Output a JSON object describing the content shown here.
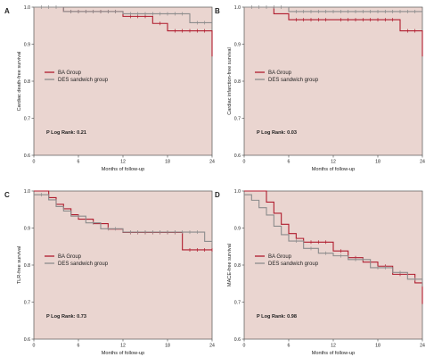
{
  "chart_data": [
    {
      "panel": "A",
      "type": "line",
      "ylabel": "Cardiac death-free survival",
      "xlabel": "Months of follow-up",
      "xlim": [
        0,
        24
      ],
      "ylim": [
        0.6,
        1.0
      ],
      "xticks": [
        0,
        6,
        12,
        18,
        24
      ],
      "yticks": [
        0.6,
        0.7,
        0.8,
        0.9,
        1.0
      ],
      "pvalue": "P Log Rank: 0.21",
      "legend_position": "center-left",
      "series": [
        {
          "name": "BA Group",
          "color": "#b01c2e",
          "x": [
            0,
            4,
            12,
            16,
            18,
            24,
            24
          ],
          "y": [
            1.0,
            0.988,
            0.975,
            0.956,
            0.936,
            0.936,
            0.867
          ],
          "censored_x": [
            5,
            6,
            7,
            8,
            9,
            10,
            11,
            13,
            14,
            15,
            17,
            19,
            20,
            21,
            22,
            23
          ]
        },
        {
          "name": "DES sandwich group",
          "color": "#8c8c8c",
          "x": [
            0,
            4,
            12,
            21,
            24
          ],
          "y": [
            1.0,
            0.988,
            0.982,
            0.958,
            0.958
          ],
          "censored_x": [
            1,
            2,
            3,
            5,
            6,
            7,
            8,
            9,
            10,
            11,
            13,
            14,
            15,
            16,
            17,
            18,
            19,
            20,
            22,
            23
          ]
        }
      ]
    },
    {
      "panel": "B",
      "type": "line",
      "ylabel": "Cardiac infarction-free survival",
      "xlabel": "Months of follow-up",
      "xlim": [
        0,
        24
      ],
      "ylim": [
        0.6,
        1.0
      ],
      "xticks": [
        0,
        6,
        12,
        18,
        24
      ],
      "yticks": [
        0.6,
        0.7,
        0.8,
        0.9,
        1.0
      ],
      "pvalue": "P Log Rank: 0.03",
      "legend_position": "center-left",
      "series": [
        {
          "name": "BA Group",
          "color": "#b01c2e",
          "x": [
            0,
            4,
            6,
            21,
            24,
            24
          ],
          "y": [
            1.0,
            0.982,
            0.966,
            0.936,
            0.936,
            0.867
          ],
          "censored_x": [
            7,
            8,
            9,
            10,
            11,
            13,
            14,
            15,
            16,
            17,
            18,
            19,
            20,
            22,
            23
          ]
        },
        {
          "name": "DES sandwich group",
          "color": "#8c8c8c",
          "x": [
            0,
            6,
            24
          ],
          "y": [
            1.0,
            0.988,
            0.988
          ],
          "censored_x": [
            1,
            2,
            3,
            4,
            5,
            7,
            8,
            9,
            10,
            11,
            12,
            13,
            14,
            15,
            16,
            17,
            18,
            19,
            20,
            21,
            22,
            23,
            24
          ]
        }
      ]
    },
    {
      "panel": "C",
      "type": "line",
      "ylabel": "TLR-free survival",
      "xlabel": "Months of follow-up",
      "xlim": [
        0,
        24
      ],
      "ylim": [
        0.6,
        1.0
      ],
      "xticks": [
        0,
        6,
        12,
        18,
        24
      ],
      "yticks": [
        0.6,
        0.7,
        0.8,
        0.9,
        1.0
      ],
      "pvalue": "P Log Rank: 0.73",
      "legend_position": "center-left",
      "series": [
        {
          "name": "BA Group",
          "color": "#b01c2e",
          "x": [
            0,
            2,
            3,
            4,
            5,
            6,
            8,
            10,
            12,
            20,
            24
          ],
          "y": [
            1.0,
            0.982,
            0.964,
            0.952,
            0.936,
            0.924,
            0.912,
            0.897,
            0.888,
            0.841,
            0.841
          ],
          "censored_x": [
            13,
            14,
            15,
            16,
            17,
            18,
            19,
            21,
            22,
            23,
            24
          ]
        },
        {
          "name": "DES sandwich group",
          "color": "#8c8c8c",
          "x": [
            0,
            2,
            3,
            4,
            5,
            7,
            9,
            12,
            23,
            24
          ],
          "y": [
            0.99,
            0.976,
            0.958,
            0.946,
            0.932,
            0.914,
            0.898,
            0.889,
            0.864,
            0.864
          ],
          "censored_x": [
            1,
            6,
            8,
            10,
            11,
            13,
            14,
            15,
            16,
            17,
            18,
            19,
            20,
            21,
            22,
            24
          ]
        }
      ]
    },
    {
      "panel": "D",
      "type": "line",
      "ylabel": "MACE-free survival",
      "xlabel": "Months of follow-up",
      "xlim": [
        0,
        24
      ],
      "ylim": [
        0.6,
        1.0
      ],
      "xticks": [
        0,
        6,
        12,
        18,
        24
      ],
      "yticks": [
        0.6,
        0.7,
        0.8,
        0.9,
        1.0
      ],
      "pvalue": "P Log Rank: 0.98",
      "legend_position": "center-left",
      "series": [
        {
          "name": "BA Group",
          "color": "#b01c2e",
          "x": [
            0,
            3,
            4,
            5,
            6,
            7,
            8,
            12,
            14,
            16,
            18,
            20,
            23,
            24,
            24
          ],
          "y": [
            1.0,
            0.97,
            0.94,
            0.91,
            0.885,
            0.872,
            0.862,
            0.838,
            0.82,
            0.808,
            0.797,
            0.775,
            0.752,
            0.752,
            0.695
          ],
          "censored_x": [
            9,
            10,
            11,
            13,
            15,
            17,
            19,
            21,
            22
          ]
        },
        {
          "name": "DES sandwich group",
          "color": "#8c8c8c",
          "x": [
            0,
            1,
            2,
            3,
            4,
            5,
            6,
            8,
            10,
            12,
            14,
            17,
            20,
            22,
            24
          ],
          "y": [
            0.99,
            0.975,
            0.955,
            0.935,
            0.905,
            0.882,
            0.865,
            0.845,
            0.832,
            0.825,
            0.815,
            0.793,
            0.78,
            0.762,
            0.742
          ],
          "censored_x": [
            7,
            9,
            11,
            13,
            15,
            16,
            18,
            19,
            21,
            23
          ]
        }
      ]
    }
  ]
}
